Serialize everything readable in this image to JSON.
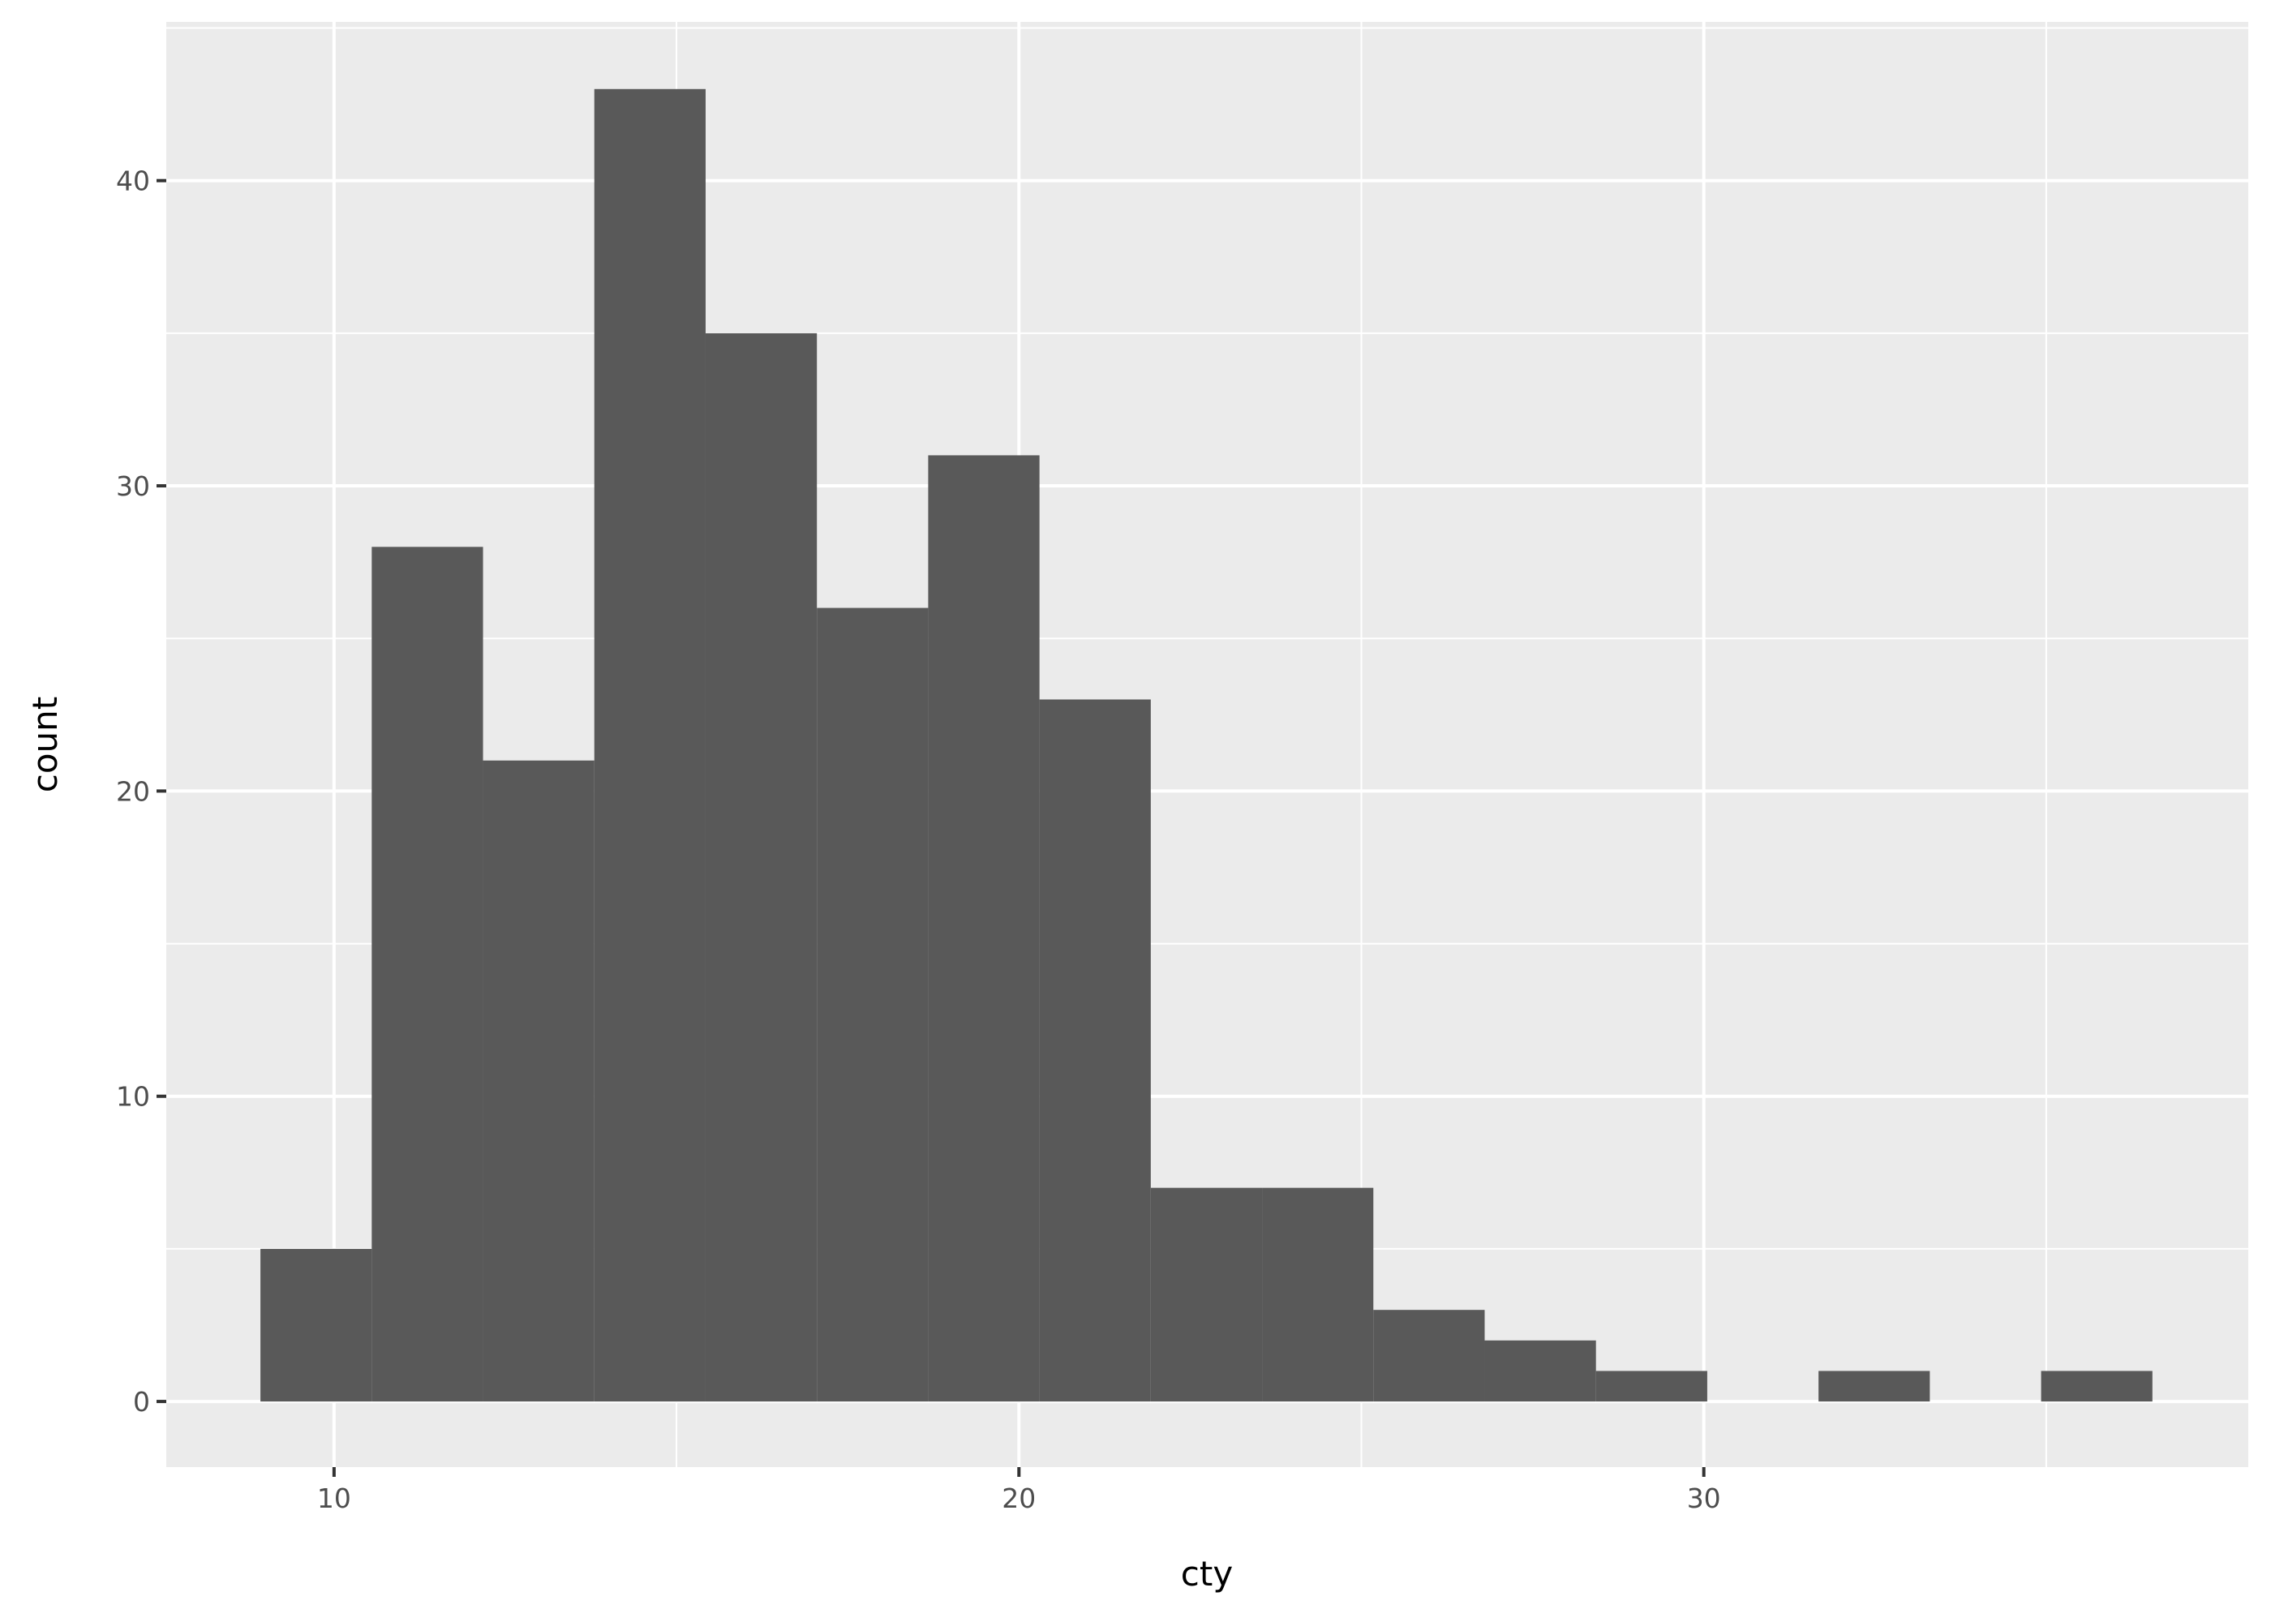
{
  "chart_data": {
    "type": "bar",
    "subtype": "histogram",
    "xlabel": "cty",
    "ylabel": "count",
    "xlim": [
      7.55,
      37.95
    ],
    "ylim": [
      -2.15,
      45.2
    ],
    "x_ticks": [
      10,
      20,
      30
    ],
    "x_tick_labels": [
      "10",
      "20",
      "30"
    ],
    "y_ticks": [
      0,
      10,
      20,
      30,
      40
    ],
    "y_tick_labels": [
      "0",
      "10",
      "20",
      "30",
      "40"
    ],
    "bin_start": 8.925,
    "bin_width": 1.625,
    "values": [
      5,
      28,
      21,
      43,
      35,
      26,
      31,
      23,
      7,
      7,
      3,
      2,
      1,
      0,
      1,
      0,
      1
    ],
    "grid": true,
    "colors": {
      "panel": "#ebebeb",
      "grid": "#ffffff",
      "bar": "#595959"
    }
  }
}
